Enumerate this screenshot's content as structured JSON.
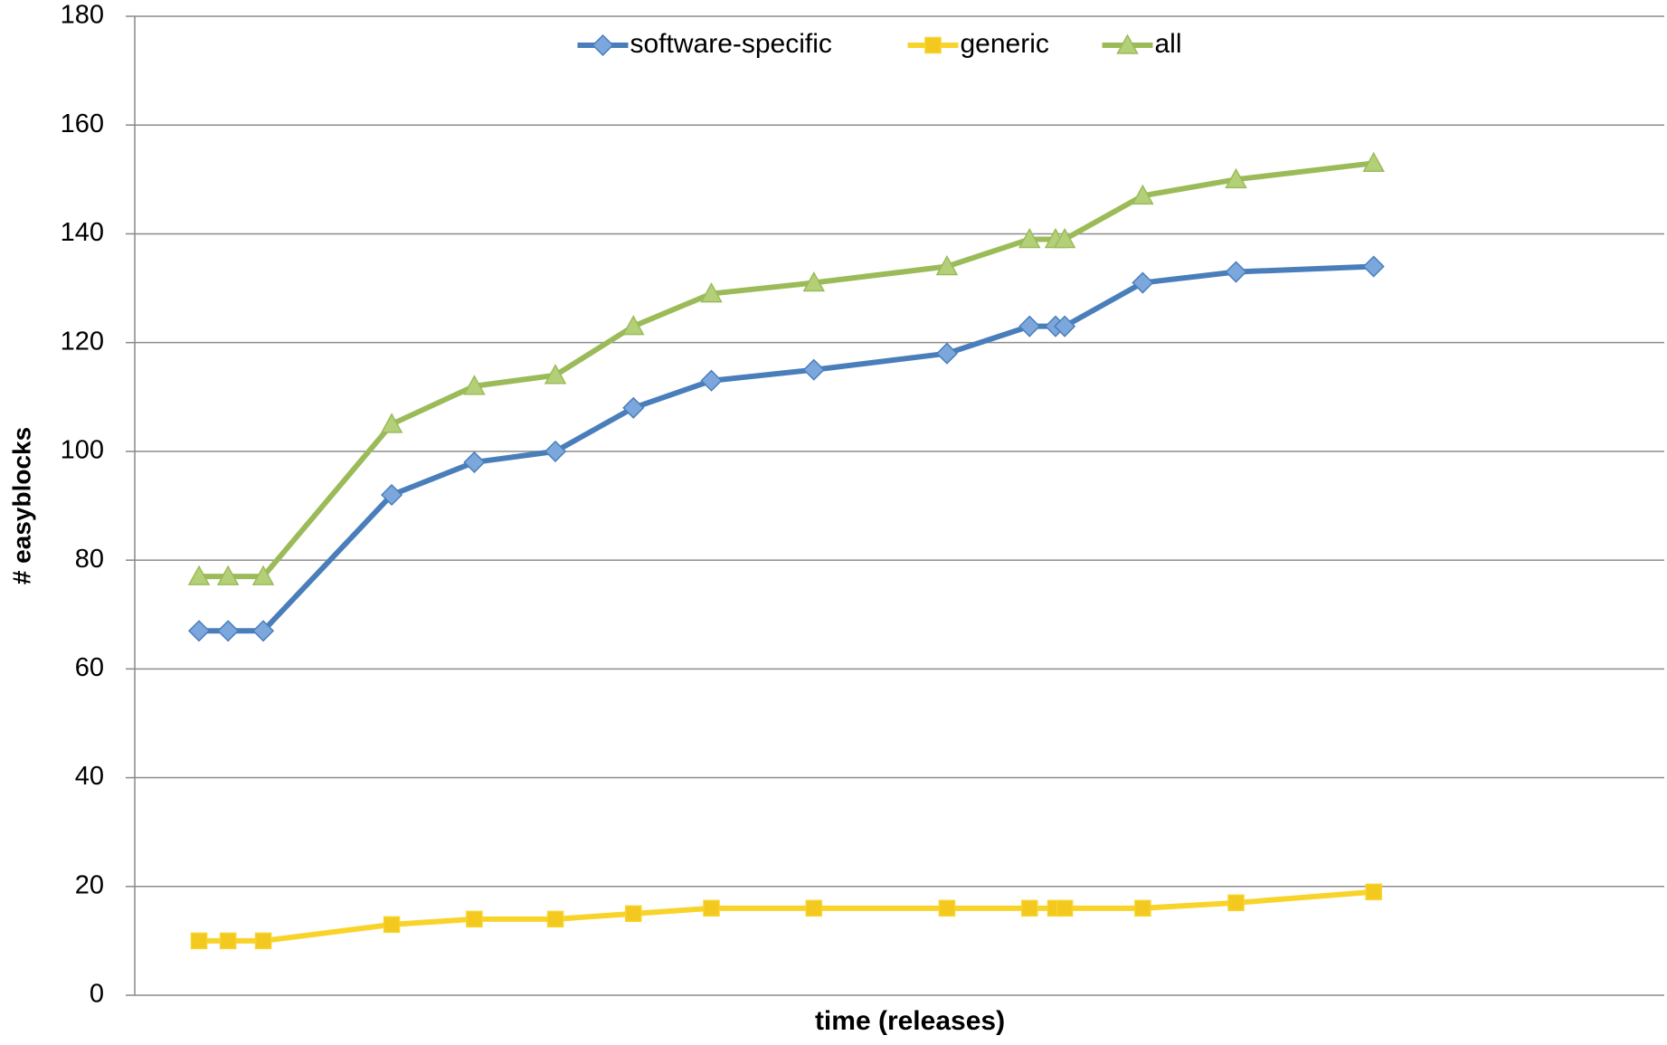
{
  "chart_data": {
    "type": "line",
    "y_label": "# easyblocks",
    "x_label": "time (releases)",
    "x": [
      4.2,
      6.1,
      8.4,
      16.8,
      22.2,
      27.5,
      32.6,
      37.7,
      44.4,
      53.1,
      58.5,
      60.2,
      60.8,
      65.9,
      72.0,
      81.0
    ],
    "xlim": [
      0,
      100
    ],
    "ylim": [
      0,
      180
    ],
    "yticks": [
      0,
      20,
      40,
      60,
      80,
      100,
      120,
      140,
      160,
      180
    ],
    "grid": true,
    "legend": "top",
    "series": [
      {
        "name": "software-specific",
        "color": "#4a7ebb",
        "marker": "diamond",
        "marker_fill": "#7ba7dc",
        "values": [
          67,
          67,
          67,
          92,
          98,
          100,
          108,
          113,
          115,
          118,
          123,
          123,
          123,
          131,
          133,
          134
        ]
      },
      {
        "name": "generic",
        "color": "#f8d42b",
        "marker": "square",
        "marker_fill": "#f3c81f",
        "values": [
          10,
          10,
          10,
          13,
          14,
          14,
          15,
          16,
          16,
          16,
          16,
          16,
          16,
          16,
          17,
          19
        ]
      },
      {
        "name": "all",
        "color": "#9bbb59",
        "marker": "triangle",
        "marker_fill": "#b3d078",
        "values": [
          77,
          77,
          77,
          105,
          112,
          114,
          123,
          129,
          131,
          134,
          139,
          139,
          139,
          147,
          150,
          153
        ]
      }
    ]
  }
}
